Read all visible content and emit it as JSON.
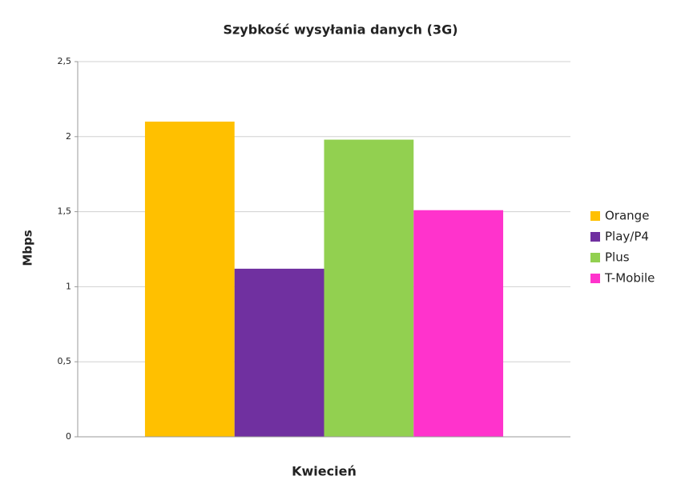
{
  "chart_data": {
    "type": "bar",
    "title": "Szybkość wysyłania danych (3G)",
    "y_label": "Mbps",
    "categories": [
      "Kwiecień"
    ],
    "series": [
      {
        "name": "Orange",
        "color": "#FFC000",
        "values": [
          2.1
        ]
      },
      {
        "name": "Play/P4",
        "color": "#7030A0",
        "values": [
          1.12
        ]
      },
      {
        "name": "Plus",
        "color": "#92D050",
        "values": [
          1.98
        ]
      },
      {
        "name": "T-Mobile",
        "color": "#FF33CC",
        "values": [
          1.51
        ]
      }
    ],
    "ylim": [
      0,
      2.5
    ],
    "yticks": [
      0,
      {
        "value": 0.5,
        "label": "0,5"
      },
      1,
      {
        "value": 1.5,
        "label": "1,5"
      },
      2,
      {
        "value": 2.5,
        "label": "2,5"
      }
    ],
    "grid": true,
    "legend": "right"
  }
}
